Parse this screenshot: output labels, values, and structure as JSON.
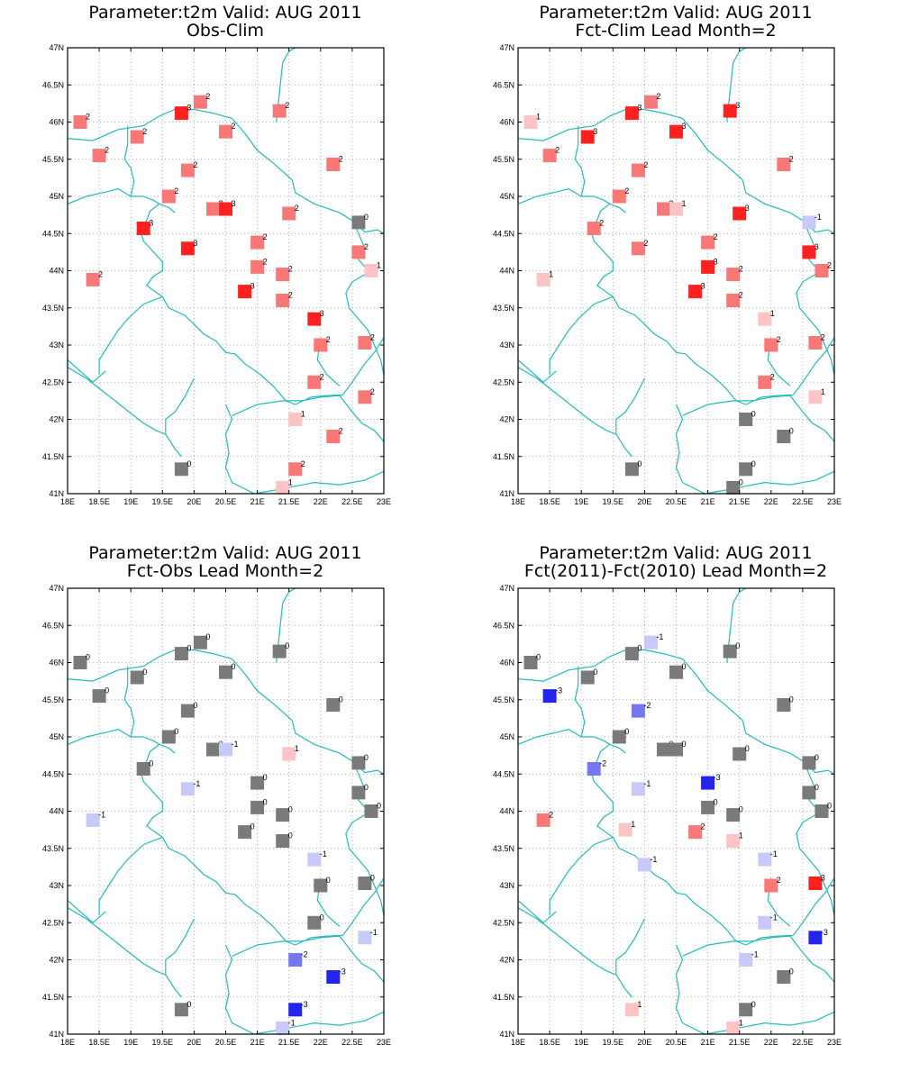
{
  "panels": [
    {
      "title1": "Parameter:t2m Valid: AUG 2011",
      "title2": "Obs-Clim",
      "stations": [
        {
          "lon": 18.2,
          "lat": 46.0,
          "v": "2"
        },
        {
          "lon": 20.1,
          "lat": 46.27,
          "v": "2"
        },
        {
          "lon": 19.8,
          "lat": 46.12,
          "v": "3"
        },
        {
          "lon": 21.35,
          "lat": 46.15,
          "v": "2"
        },
        {
          "lon": 19.1,
          "lat": 45.8,
          "v": "2"
        },
        {
          "lon": 20.5,
          "lat": 45.87,
          "v": "2"
        },
        {
          "lon": 18.5,
          "lat": 45.55,
          "v": "2"
        },
        {
          "lon": 22.2,
          "lat": 45.43,
          "v": "2"
        },
        {
          "lon": 19.9,
          "lat": 45.35,
          "v": "2"
        },
        {
          "lon": 19.6,
          "lat": 45.0,
          "v": "2"
        },
        {
          "lon": 20.3,
          "lat": 44.83,
          "v": "2"
        },
        {
          "lon": 20.5,
          "lat": 44.83,
          "v": "3"
        },
        {
          "lon": 21.5,
          "lat": 44.77,
          "v": "2"
        },
        {
          "lon": 22.6,
          "lat": 44.65,
          "v": "0"
        },
        {
          "lon": 19.2,
          "lat": 44.57,
          "v": "3"
        },
        {
          "lon": 19.9,
          "lat": 44.3,
          "v": "3"
        },
        {
          "lon": 21.0,
          "lat": 44.38,
          "v": "2"
        },
        {
          "lon": 22.6,
          "lat": 44.25,
          "v": "2"
        },
        {
          "lon": 21.0,
          "lat": 44.05,
          "v": "2"
        },
        {
          "lon": 22.8,
          "lat": 44.0,
          "v": "1"
        },
        {
          "lon": 21.4,
          "lat": 43.95,
          "v": "2"
        },
        {
          "lon": 18.4,
          "lat": 43.88,
          "v": "2"
        },
        {
          "lon": 20.8,
          "lat": 43.72,
          "v": "3"
        },
        {
          "lon": 21.4,
          "lat": 43.6,
          "v": "2"
        },
        {
          "lon": 21.9,
          "lat": 43.35,
          "v": "3"
        },
        {
          "lon": 22.0,
          "lat": 43.0,
          "v": "2"
        },
        {
          "lon": 22.7,
          "lat": 43.03,
          "v": "2"
        },
        {
          "lon": 21.9,
          "lat": 42.5,
          "v": "2"
        },
        {
          "lon": 22.7,
          "lat": 42.3,
          "v": "2"
        },
        {
          "lon": 21.6,
          "lat": 42.0,
          "v": "1"
        },
        {
          "lon": 22.2,
          "lat": 41.77,
          "v": "2"
        },
        {
          "lon": 19.8,
          "lat": 41.33,
          "v": "0"
        },
        {
          "lon": 21.6,
          "lat": 41.33,
          "v": "2"
        },
        {
          "lon": 21.4,
          "lat": 41.08,
          "v": "1"
        }
      ]
    },
    {
      "title1": "Parameter:t2m Valid: AUG 2011",
      "title2": "Fct-Clim Lead Month=2",
      "stations": [
        {
          "lon": 18.2,
          "lat": 46.0,
          "v": "1"
        },
        {
          "lon": 20.1,
          "lat": 46.27,
          "v": "2"
        },
        {
          "lon": 19.8,
          "lat": 46.12,
          "v": "3"
        },
        {
          "lon": 21.35,
          "lat": 46.15,
          "v": "3"
        },
        {
          "lon": 19.1,
          "lat": 45.8,
          "v": "3"
        },
        {
          "lon": 20.5,
          "lat": 45.87,
          "v": "3"
        },
        {
          "lon": 18.5,
          "lat": 45.55,
          "v": "2"
        },
        {
          "lon": 22.2,
          "lat": 45.43,
          "v": "2"
        },
        {
          "lon": 19.9,
          "lat": 45.35,
          "v": "2"
        },
        {
          "lon": 19.6,
          "lat": 45.0,
          "v": "2"
        },
        {
          "lon": 20.3,
          "lat": 44.83,
          "v": "2"
        },
        {
          "lon": 20.5,
          "lat": 44.83,
          "v": "1"
        },
        {
          "lon": 21.5,
          "lat": 44.77,
          "v": "3"
        },
        {
          "lon": 22.6,
          "lat": 44.65,
          "v": "-1"
        },
        {
          "lon": 19.2,
          "lat": 44.57,
          "v": "2"
        },
        {
          "lon": 19.9,
          "lat": 44.3,
          "v": "2"
        },
        {
          "lon": 21.0,
          "lat": 44.38,
          "v": "2"
        },
        {
          "lon": 22.6,
          "lat": 44.25,
          "v": "3"
        },
        {
          "lon": 21.0,
          "lat": 44.05,
          "v": "3"
        },
        {
          "lon": 22.8,
          "lat": 44.0,
          "v": "2"
        },
        {
          "lon": 21.4,
          "lat": 43.95,
          "v": "2"
        },
        {
          "lon": 18.4,
          "lat": 43.88,
          "v": "1"
        },
        {
          "lon": 20.8,
          "lat": 43.72,
          "v": "3"
        },
        {
          "lon": 21.4,
          "lat": 43.6,
          "v": "2"
        },
        {
          "lon": 21.9,
          "lat": 43.35,
          "v": "1"
        },
        {
          "lon": 22.0,
          "lat": 43.0,
          "v": "2"
        },
        {
          "lon": 22.7,
          "lat": 43.03,
          "v": "2"
        },
        {
          "lon": 21.9,
          "lat": 42.5,
          "v": "2"
        },
        {
          "lon": 22.7,
          "lat": 42.3,
          "v": "1"
        },
        {
          "lon": 21.6,
          "lat": 42.0,
          "v": "0"
        },
        {
          "lon": 22.2,
          "lat": 41.77,
          "v": "0"
        },
        {
          "lon": 19.8,
          "lat": 41.33,
          "v": "0"
        },
        {
          "lon": 21.6,
          "lat": 41.33,
          "v": "0"
        },
        {
          "lon": 21.4,
          "lat": 41.08,
          "v": "0"
        }
      ]
    },
    {
      "title1": "Parameter:t2m Valid: AUG 2011",
      "title2": "Fct-Obs Lead Month=2",
      "stations": [
        {
          "lon": 18.2,
          "lat": 46.0,
          "v": "0"
        },
        {
          "lon": 20.1,
          "lat": 46.27,
          "v": "0"
        },
        {
          "lon": 19.8,
          "lat": 46.12,
          "v": "0"
        },
        {
          "lon": 21.35,
          "lat": 46.15,
          "v": "0"
        },
        {
          "lon": 19.1,
          "lat": 45.8,
          "v": "0"
        },
        {
          "lon": 20.5,
          "lat": 45.87,
          "v": "0"
        },
        {
          "lon": 18.5,
          "lat": 45.55,
          "v": "0"
        },
        {
          "lon": 22.2,
          "lat": 45.43,
          "v": "0"
        },
        {
          "lon": 19.9,
          "lat": 45.35,
          "v": "0"
        },
        {
          "lon": 19.6,
          "lat": 45.0,
          "v": "0"
        },
        {
          "lon": 20.3,
          "lat": 44.83,
          "v": "0"
        },
        {
          "lon": 20.5,
          "lat": 44.83,
          "v": "-1"
        },
        {
          "lon": 21.5,
          "lat": 44.77,
          "v": "1"
        },
        {
          "lon": 22.6,
          "lat": 44.65,
          "v": "0"
        },
        {
          "lon": 19.2,
          "lat": 44.57,
          "v": "0"
        },
        {
          "lon": 19.9,
          "lat": 44.3,
          "v": "-1"
        },
        {
          "lon": 21.0,
          "lat": 44.38,
          "v": "0"
        },
        {
          "lon": 22.6,
          "lat": 44.25,
          "v": "0"
        },
        {
          "lon": 21.0,
          "lat": 44.05,
          "v": "0"
        },
        {
          "lon": 22.8,
          "lat": 44.0,
          "v": "0"
        },
        {
          "lon": 21.4,
          "lat": 43.95,
          "v": "0"
        },
        {
          "lon": 18.4,
          "lat": 43.88,
          "v": "-1"
        },
        {
          "lon": 20.8,
          "lat": 43.72,
          "v": "0"
        },
        {
          "lon": 21.4,
          "lat": 43.6,
          "v": "0"
        },
        {
          "lon": 21.9,
          "lat": 43.35,
          "v": "-1"
        },
        {
          "lon": 22.0,
          "lat": 43.0,
          "v": "0"
        },
        {
          "lon": 22.7,
          "lat": 43.03,
          "v": "0"
        },
        {
          "lon": 21.9,
          "lat": 42.5,
          "v": "0"
        },
        {
          "lon": 22.7,
          "lat": 42.3,
          "v": "-1"
        },
        {
          "lon": 21.6,
          "lat": 42.0,
          "v": "-2"
        },
        {
          "lon": 22.2,
          "lat": 41.77,
          "v": "-3"
        },
        {
          "lon": 19.8,
          "lat": 41.33,
          "v": "0"
        },
        {
          "lon": 21.6,
          "lat": 41.33,
          "v": "-3"
        },
        {
          "lon": 21.4,
          "lat": 41.08,
          "v": "-1"
        }
      ]
    },
    {
      "title1": "Parameter:t2m Valid: AUG 2011",
      "title2": "Fct(2011)-Fct(2010) Lead Month=2",
      "stations": [
        {
          "lon": 18.2,
          "lat": 46.0,
          "v": "0"
        },
        {
          "lon": 20.1,
          "lat": 46.27,
          "v": "-1"
        },
        {
          "lon": 19.8,
          "lat": 46.12,
          "v": "0"
        },
        {
          "lon": 21.35,
          "lat": 46.15,
          "v": "0"
        },
        {
          "lon": 19.1,
          "lat": 45.8,
          "v": "0"
        },
        {
          "lon": 20.5,
          "lat": 45.87,
          "v": "0"
        },
        {
          "lon": 18.5,
          "lat": 45.55,
          "v": "-3"
        },
        {
          "lon": 22.2,
          "lat": 45.43,
          "v": "0"
        },
        {
          "lon": 19.9,
          "lat": 45.35,
          "v": "-2"
        },
        {
          "lon": 19.6,
          "lat": 45.0,
          "v": "0"
        },
        {
          "lon": 20.3,
          "lat": 44.83,
          "v": "0"
        },
        {
          "lon": 20.5,
          "lat": 44.83,
          "v": "0"
        },
        {
          "lon": 21.5,
          "lat": 44.77,
          "v": "0"
        },
        {
          "lon": 22.6,
          "lat": 44.65,
          "v": "0"
        },
        {
          "lon": 19.2,
          "lat": 44.57,
          "v": "-2"
        },
        {
          "lon": 19.9,
          "lat": 44.3,
          "v": "-1"
        },
        {
          "lon": 21.0,
          "lat": 44.38,
          "v": "-3"
        },
        {
          "lon": 22.6,
          "lat": 44.25,
          "v": "0"
        },
        {
          "lon": 21.0,
          "lat": 44.05,
          "v": "0"
        },
        {
          "lon": 22.8,
          "lat": 44.0,
          "v": "0"
        },
        {
          "lon": 21.4,
          "lat": 43.95,
          "v": "0"
        },
        {
          "lon": 18.4,
          "lat": 43.88,
          "v": "2"
        },
        {
          "lon": 20.8,
          "lat": 43.72,
          "v": "2"
        },
        {
          "lon": 19.7,
          "lat": 43.75,
          "v": "1"
        },
        {
          "lon": 21.4,
          "lat": 43.6,
          "v": "1"
        },
        {
          "lon": 21.9,
          "lat": 43.35,
          "v": "-1"
        },
        {
          "lon": 20.0,
          "lat": 43.28,
          "v": "-1"
        },
        {
          "lon": 22.0,
          "lat": 43.0,
          "v": "2"
        },
        {
          "lon": 22.7,
          "lat": 43.03,
          "v": "3"
        },
        {
          "lon": 21.9,
          "lat": 42.5,
          "v": "-1"
        },
        {
          "lon": 22.7,
          "lat": 42.3,
          "v": "-3"
        },
        {
          "lon": 21.6,
          "lat": 42.0,
          "v": "-1"
        },
        {
          "lon": 22.2,
          "lat": 41.77,
          "v": "0"
        },
        {
          "lon": 19.8,
          "lat": 41.33,
          "v": "1"
        },
        {
          "lon": 21.6,
          "lat": 41.33,
          "v": "0"
        },
        {
          "lon": 21.4,
          "lat": 41.08,
          "v": "1"
        }
      ]
    }
  ],
  "axes": {
    "lon_min": 18,
    "lon_max": 23,
    "lat_min": 41,
    "lat_max": 47,
    "lon_ticks": [
      "18E",
      "18.5E",
      "19E",
      "19.5E",
      "20E",
      "20.5E",
      "21E",
      "21.5E",
      "22E",
      "22.5E",
      "23E"
    ],
    "lat_ticks": [
      "41N",
      "41.5N",
      "42N",
      "42.5N",
      "43N",
      "43.5N",
      "44N",
      "44.5N",
      "45N",
      "45.5N",
      "46N",
      "46.5N",
      "47N"
    ]
  },
  "colors": {
    "boundary": "#22bbbb",
    "grid": "#999999",
    "v3": "#ff2020",
    "v2": "#f87878",
    "v1": "#fcc4c4",
    "v0": "#7a7a7a",
    "vm1": "#c8c8fa",
    "vm2": "#7676f0",
    "vm3": "#2424ee"
  }
}
